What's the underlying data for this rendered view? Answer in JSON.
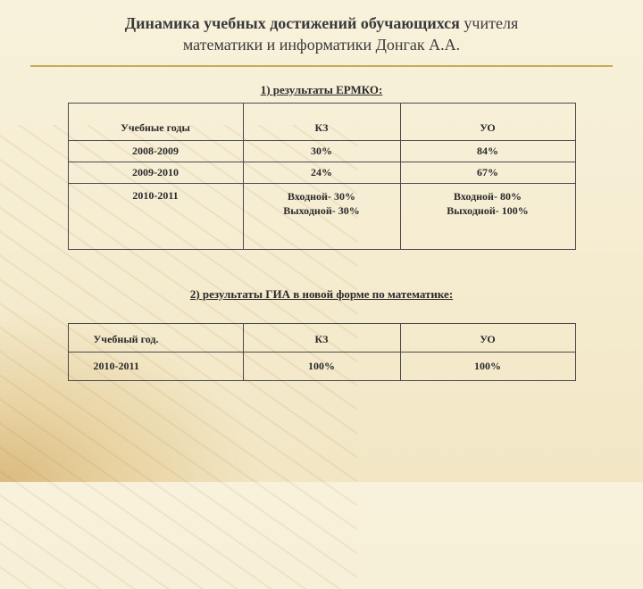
{
  "title": {
    "bold": "Динамика учебных достижений обучающихся",
    "rest1": " учителя",
    "line2": "математики и информатики Донгак А.А."
  },
  "section1": {
    "heading": "1) результаты ЕРМКО:",
    "columns": [
      "Учебные годы",
      "КЗ",
      "УО"
    ],
    "rows": [
      {
        "year": "2008-2009",
        "kz": "30%",
        "uo": "84%"
      },
      {
        "year": "2009-2010",
        "kz": "24%",
        "uo": "67%"
      },
      {
        "year": "2010-2011",
        "kz_line1": "Входной- 30%",
        "kz_line2": "Выходной- 30%",
        "uo_line1": "Входной- 80%",
        "uo_line2": "Выходной- 100%"
      }
    ]
  },
  "section2": {
    "heading": "2)  результаты  ГИА в новой форме по математике:",
    "columns": [
      "Учебный год.",
      "КЗ",
      "УО"
    ],
    "rows": [
      {
        "year": "2010-2011",
        "kz": "100%",
        "uo": "100%"
      }
    ]
  },
  "colors": {
    "heading_underline": "#caa95a",
    "text": "#2a2a2a",
    "border": "#4a4a4a",
    "bg_top": "#f8f2dc",
    "bg_bottom": "#f2e6c4"
  }
}
